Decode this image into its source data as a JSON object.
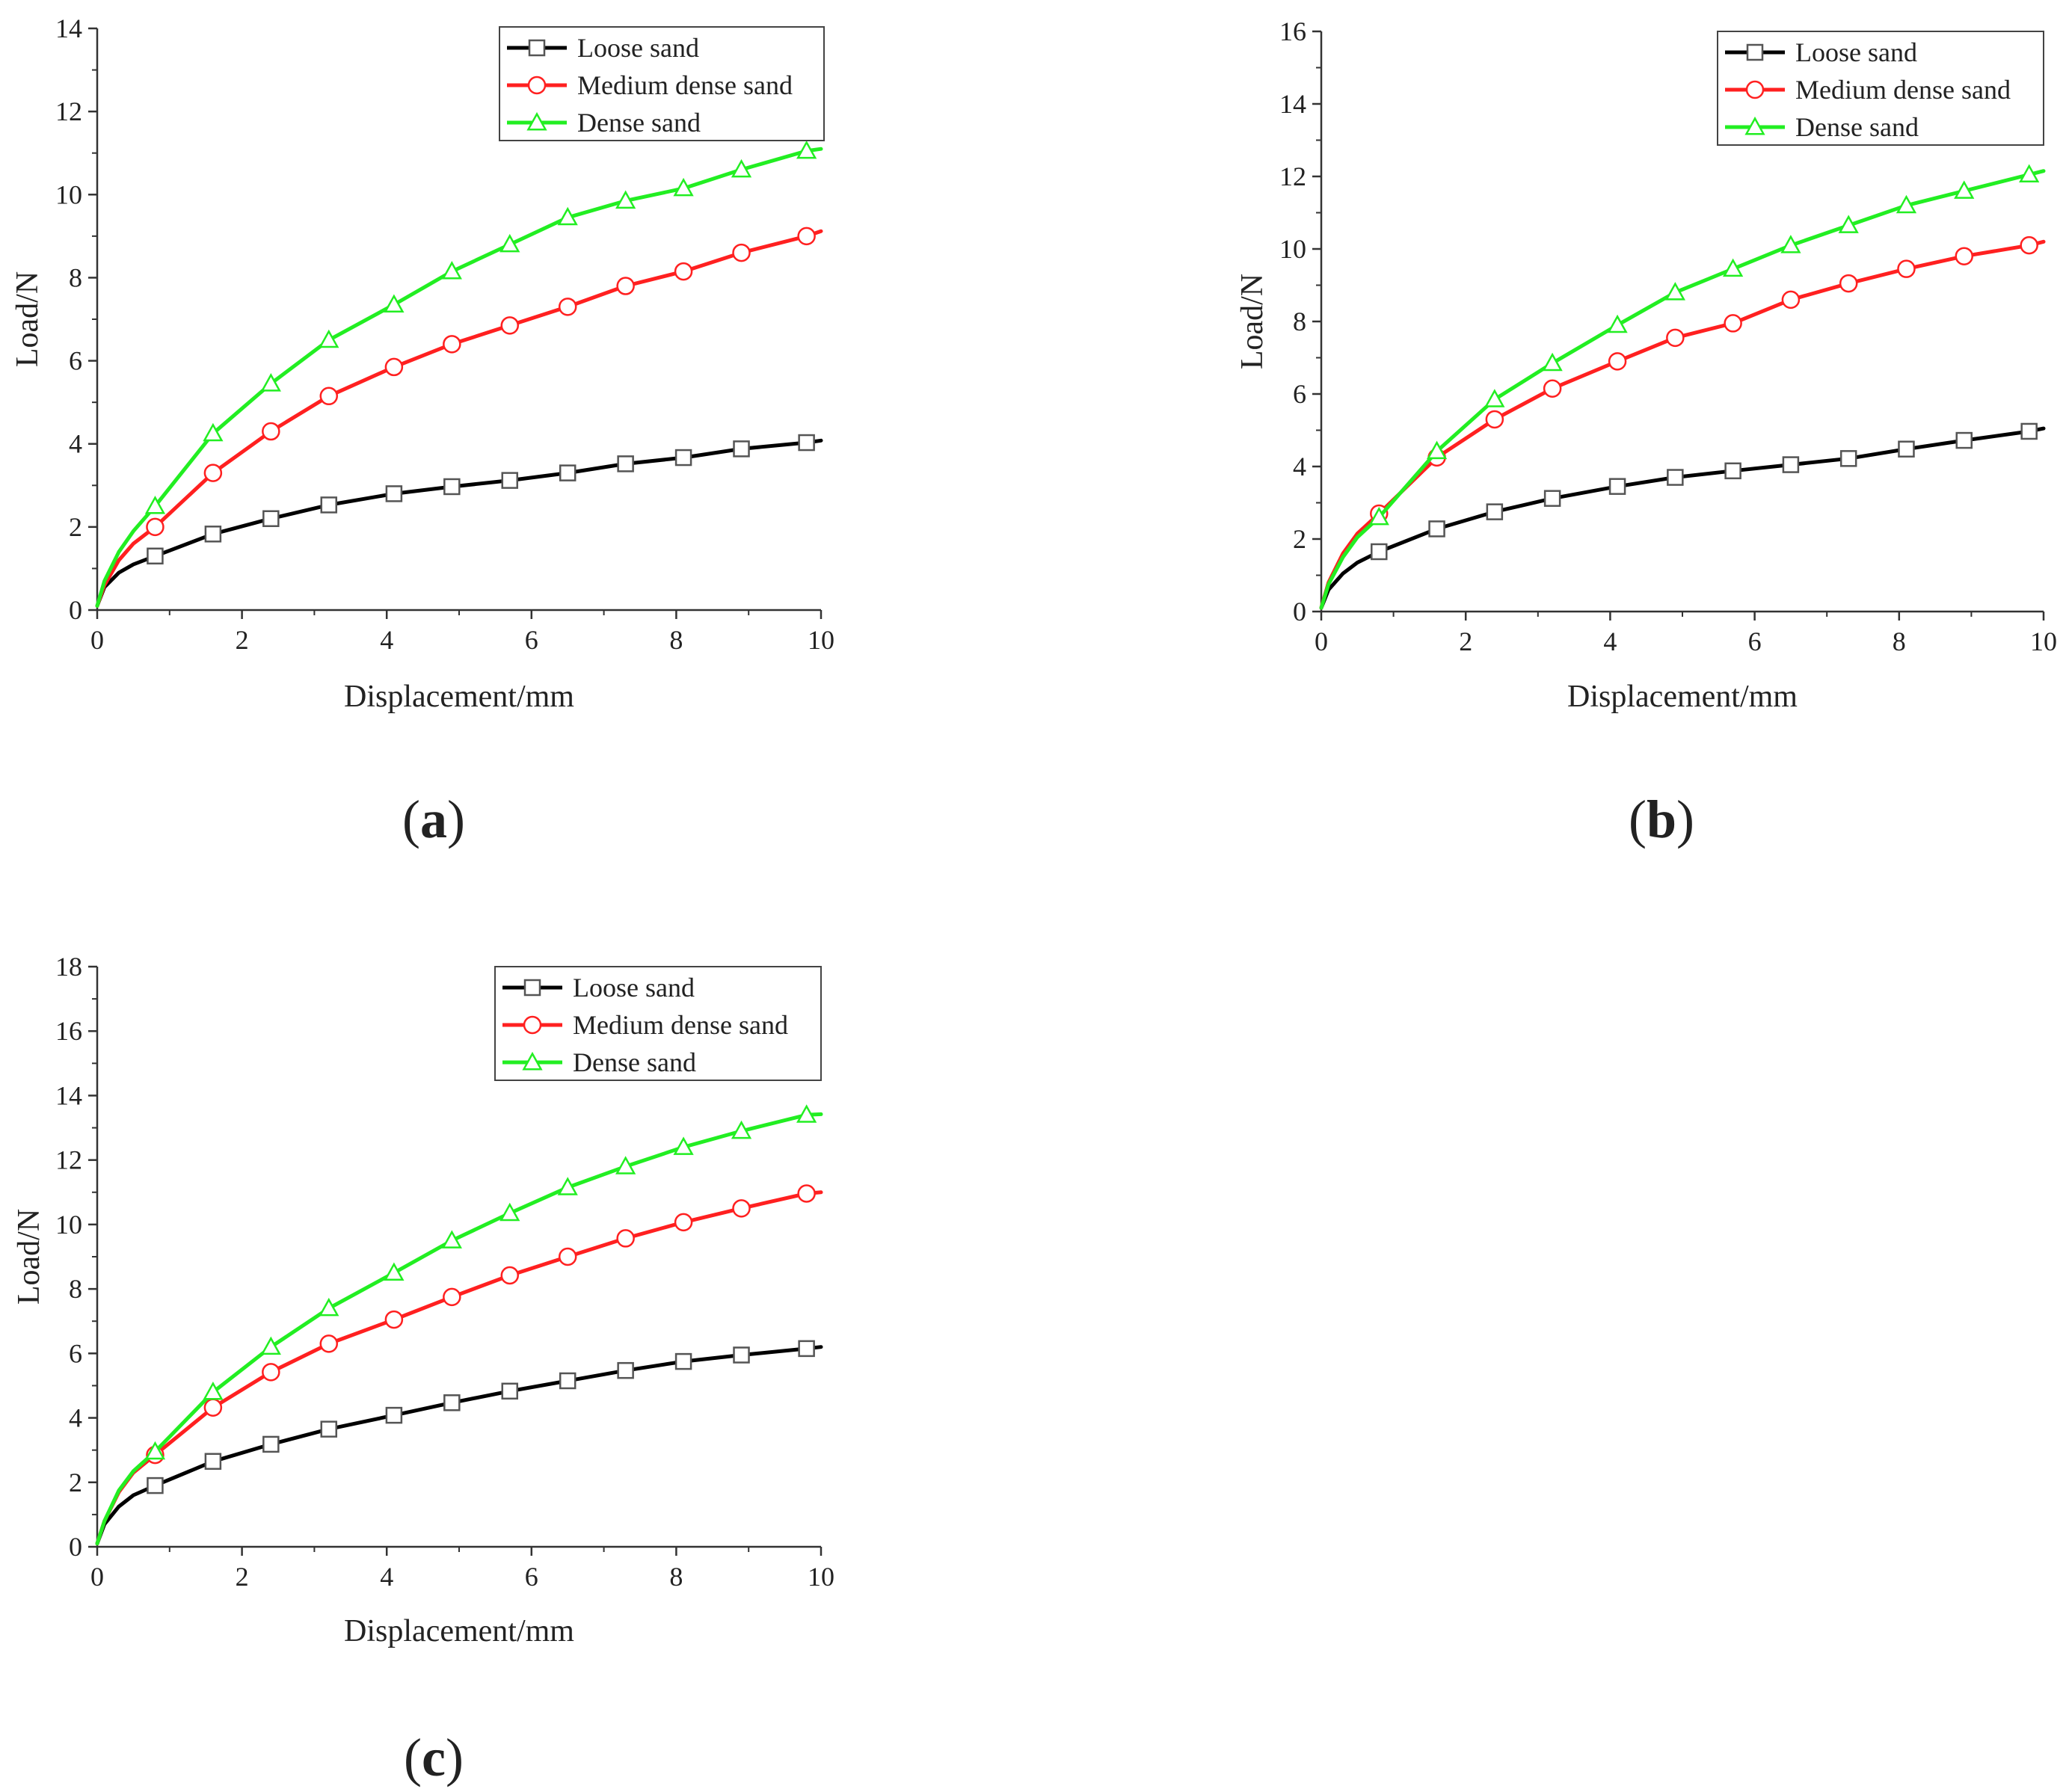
{
  "figure": {
    "colors": {
      "loose": "#000000",
      "medium": "#ff2020",
      "dense": "#22ee22",
      "axis": "#333333"
    },
    "marker_shapes": {
      "loose": "square",
      "medium": "circle",
      "dense": "triangle"
    }
  },
  "chart_data": [
    {
      "type": "line",
      "panel": "a",
      "panel_label": {
        "open": "(",
        "letter": "a",
        "close": ")"
      },
      "xlabel": "Displacement/mm",
      "ylabel": "Load/N",
      "xlim": [
        0,
        10
      ],
      "ylim": [
        0,
        14
      ],
      "xticks": [
        0,
        2,
        4,
        6,
        8,
        10
      ],
      "yticks": [
        0,
        2,
        4,
        6,
        8,
        10,
        12,
        14
      ],
      "legend": {
        "position": "top-right",
        "entries": [
          "Loose sand",
          "Medium dense sand",
          "Dense sand"
        ]
      },
      "series": [
        {
          "name": "Loose sand",
          "key": "loose",
          "x": [
            0,
            0.1,
            0.3,
            0.5,
            0.8,
            1.6,
            2.4,
            3.2,
            4.1,
            4.9,
            5.7,
            6.5,
            7.3,
            8.1,
            8.9,
            9.8,
            10
          ],
          "y": [
            0.1,
            0.55,
            0.9,
            1.1,
            1.3,
            1.83,
            2.2,
            2.53,
            2.8,
            2.97,
            3.12,
            3.3,
            3.52,
            3.67,
            3.88,
            4.03,
            4.08
          ]
        },
        {
          "name": "Medium dense sand",
          "key": "medium",
          "x": [
            0,
            0.1,
            0.3,
            0.5,
            0.8,
            1.6,
            2.4,
            3.2,
            4.1,
            4.9,
            5.7,
            6.5,
            7.3,
            8.1,
            8.9,
            9.8,
            10
          ],
          "y": [
            0.1,
            0.6,
            1.2,
            1.6,
            2.0,
            3.3,
            4.3,
            5.15,
            5.85,
            6.4,
            6.85,
            7.3,
            7.8,
            8.15,
            8.6,
            9.0,
            9.12
          ]
        },
        {
          "name": "Dense sand",
          "key": "dense",
          "x": [
            0,
            0.1,
            0.3,
            0.5,
            0.8,
            1.6,
            2.4,
            3.2,
            4.1,
            4.9,
            5.7,
            6.5,
            7.3,
            8.1,
            8.9,
            9.8,
            10
          ],
          "y": [
            0.1,
            0.7,
            1.4,
            1.9,
            2.5,
            4.25,
            5.45,
            6.5,
            7.35,
            8.15,
            8.8,
            9.45,
            9.85,
            10.15,
            10.6,
            11.05,
            11.1
          ]
        }
      ]
    },
    {
      "type": "line",
      "panel": "b",
      "panel_label": {
        "open": "(",
        "letter": "b",
        "close": ")"
      },
      "xlabel": "Displacement/mm",
      "ylabel": "Load/N",
      "xlim": [
        0,
        10
      ],
      "ylim": [
        0,
        16
      ],
      "xticks": [
        0,
        2,
        4,
        6,
        8,
        10
      ],
      "yticks": [
        0,
        2,
        4,
        6,
        8,
        10,
        12,
        14,
        16
      ],
      "legend": {
        "position": "top-right",
        "entries": [
          "Loose sand",
          "Medium dense sand",
          "Dense sand"
        ]
      },
      "series": [
        {
          "name": "Loose sand",
          "key": "loose",
          "x": [
            0,
            0.1,
            0.3,
            0.5,
            0.8,
            1.6,
            2.4,
            3.2,
            4.1,
            4.9,
            5.7,
            6.5,
            7.3,
            8.1,
            8.9,
            9.8,
            10
          ],
          "y": [
            0.1,
            0.6,
            1.05,
            1.35,
            1.65,
            2.28,
            2.75,
            3.12,
            3.45,
            3.7,
            3.88,
            4.05,
            4.22,
            4.48,
            4.72,
            4.97,
            5.05
          ]
        },
        {
          "name": "Medium dense sand",
          "key": "medium",
          "x": [
            0,
            0.1,
            0.3,
            0.5,
            0.8,
            1.6,
            2.4,
            3.2,
            4.1,
            4.9,
            5.7,
            6.5,
            7.3,
            8.1,
            8.9,
            9.8,
            10
          ],
          "y": [
            0.1,
            0.8,
            1.6,
            2.15,
            2.7,
            4.25,
            5.3,
            6.15,
            6.9,
            7.55,
            7.95,
            8.6,
            9.05,
            9.45,
            9.8,
            10.1,
            10.2
          ]
        },
        {
          "name": "Dense sand",
          "key": "dense",
          "x": [
            0,
            0.1,
            0.3,
            0.5,
            0.8,
            1.6,
            2.4,
            3.2,
            4.1,
            4.9,
            5.7,
            6.5,
            7.3,
            8.1,
            8.9,
            9.8,
            10
          ],
          "y": [
            0.1,
            0.75,
            1.5,
            2.05,
            2.6,
            4.42,
            5.85,
            6.85,
            7.9,
            8.8,
            9.45,
            10.1,
            10.65,
            11.2,
            11.6,
            12.05,
            12.15
          ]
        }
      ]
    },
    {
      "type": "line",
      "panel": "c",
      "panel_label": {
        "open": "(",
        "letter": "c",
        "close": ")"
      },
      "xlabel": "Displacement/mm",
      "ylabel": "Load/N",
      "xlim": [
        0,
        10
      ],
      "ylim": [
        0,
        18
      ],
      "xticks": [
        0,
        2,
        4,
        6,
        8,
        10
      ],
      "yticks": [
        0,
        2,
        4,
        6,
        8,
        10,
        12,
        14,
        16,
        18
      ],
      "legend": {
        "position": "top-right",
        "entries": [
          "Loose sand",
          "Medium dense sand",
          "Dense sand"
        ]
      },
      "series": [
        {
          "name": "Loose sand",
          "key": "loose",
          "x": [
            0,
            0.1,
            0.3,
            0.5,
            0.8,
            1.6,
            2.4,
            3.2,
            4.1,
            4.9,
            5.7,
            6.5,
            7.3,
            8.1,
            8.9,
            9.8,
            10
          ],
          "y": [
            0.1,
            0.7,
            1.25,
            1.6,
            1.9,
            2.65,
            3.18,
            3.65,
            4.08,
            4.47,
            4.83,
            5.15,
            5.47,
            5.75,
            5.95,
            6.15,
            6.2
          ]
        },
        {
          "name": "Medium dense sand",
          "key": "medium",
          "x": [
            0,
            0.1,
            0.3,
            0.5,
            0.8,
            1.6,
            2.4,
            3.2,
            4.1,
            4.9,
            5.7,
            6.5,
            7.3,
            8.1,
            8.9,
            9.8,
            10
          ],
          "y": [
            0.1,
            0.8,
            1.7,
            2.3,
            2.85,
            4.32,
            5.42,
            6.3,
            7.05,
            7.75,
            8.42,
            9.0,
            9.57,
            10.07,
            10.5,
            10.96,
            11.0
          ]
        },
        {
          "name": "Dense sand",
          "key": "dense",
          "x": [
            0,
            0.1,
            0.3,
            0.5,
            0.8,
            1.6,
            2.4,
            3.2,
            4.1,
            4.9,
            5.7,
            6.5,
            7.3,
            8.1,
            8.9,
            9.8,
            10
          ],
          "y": [
            0.1,
            0.8,
            1.75,
            2.35,
            2.95,
            4.8,
            6.2,
            7.4,
            8.5,
            9.5,
            10.35,
            11.15,
            11.8,
            12.4,
            12.9,
            13.4,
            13.42
          ]
        }
      ]
    }
  ]
}
